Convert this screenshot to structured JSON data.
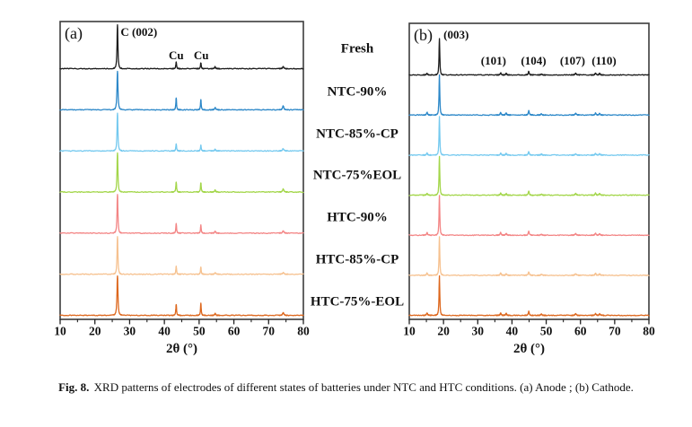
{
  "figure": {
    "caption_prefix": "Fig. 8.",
    "caption_text": " XRD patterns of electrodes of different states of batteries under NTC and HTC conditions. (a) Anode ; (b) Cathode."
  },
  "row_labels": [
    "Fresh",
    "NTC-90%",
    "NTC-85%-CP",
    "NTC-75%EOL",
    "HTC-90%",
    "HTC-85%-CP",
    "HTC-75%-EOL"
  ],
  "chart_data": [
    {
      "id": "anode",
      "type": "line",
      "panel_label": "(a)",
      "title": "",
      "xlabel": "2θ (°)",
      "ylabel": "",
      "xlim": [
        10,
        80
      ],
      "x_ticks": [
        10,
        20,
        30,
        40,
        50,
        60,
        70,
        80
      ],
      "grid": false,
      "legend_position": "labels-column-between-panels",
      "stacked_offset_traces": true,
      "peak_format": "[x_2theta_deg, relative_height, half_width_deg]",
      "annotations": [
        {
          "text": "C (002)",
          "x": 27.4,
          "row": 0,
          "dy": 37,
          "anchor": "start"
        },
        {
          "text": "Cu",
          "x": 43.4,
          "row": 0,
          "dy": 11,
          "anchor": "middle"
        },
        {
          "text": "Cu",
          "x": 50.6,
          "row": 0,
          "dy": 11,
          "anchor": "middle"
        }
      ],
      "series": [
        {
          "name": "Fresh",
          "color": "#1c1c1c",
          "peaks": [
            [
              26.5,
              1.1,
              0.18
            ],
            [
              43.4,
              0.17,
              0.15
            ],
            [
              50.5,
              0.15,
              0.15
            ],
            [
              54.6,
              0.05,
              0.2
            ],
            [
              74.2,
              0.05,
              0.25
            ]
          ]
        },
        {
          "name": "NTC-90%",
          "color": "#2b87c8",
          "peaks": [
            [
              26.5,
              0.97,
              0.2
            ],
            [
              43.4,
              0.3,
              0.15
            ],
            [
              50.5,
              0.26,
              0.15
            ],
            [
              54.6,
              0.06,
              0.2
            ],
            [
              74.2,
              0.1,
              0.25
            ]
          ]
        },
        {
          "name": "NTC-85%-CP",
          "color": "#74c9ef",
          "peaks": [
            [
              26.5,
              0.95,
              0.18
            ],
            [
              43.4,
              0.18,
              0.15
            ],
            [
              50.5,
              0.14,
              0.15
            ],
            [
              54.6,
              0.04,
              0.2
            ],
            [
              74.2,
              0.06,
              0.25
            ]
          ]
        },
        {
          "name": "NTC-75%EOL",
          "color": "#a3d64a",
          "peaks": [
            [
              26.5,
              1.0,
              0.18
            ],
            [
              43.4,
              0.26,
              0.15
            ],
            [
              50.5,
              0.24,
              0.15
            ],
            [
              54.6,
              0.05,
              0.2
            ],
            [
              74.2,
              0.08,
              0.25
            ]
          ]
        },
        {
          "name": "HTC-90%",
          "color": "#f38585",
          "peaks": [
            [
              26.5,
              0.98,
              0.18
            ],
            [
              43.4,
              0.24,
              0.15
            ],
            [
              50.5,
              0.2,
              0.15
            ],
            [
              54.6,
              0.05,
              0.2
            ],
            [
              74.2,
              0.06,
              0.25
            ]
          ]
        },
        {
          "name": "HTC-85%-CP",
          "color": "#f6c18f",
          "peaks": [
            [
              26.5,
              0.95,
              0.18
            ],
            [
              43.4,
              0.2,
              0.15
            ],
            [
              50.5,
              0.18,
              0.15
            ],
            [
              54.6,
              0.04,
              0.2
            ],
            [
              74.2,
              0.05,
              0.25
            ]
          ]
        },
        {
          "name": "HTC-75%-EOL",
          "color": "#dd671d",
          "peaks": [
            [
              26.5,
              1.0,
              0.2
            ],
            [
              43.4,
              0.28,
              0.15
            ],
            [
              50.5,
              0.3,
              0.15
            ],
            [
              54.6,
              0.05,
              0.2
            ],
            [
              74.2,
              0.07,
              0.25
            ]
          ]
        }
      ]
    },
    {
      "id": "cathode",
      "type": "line",
      "panel_label": "(b)",
      "title": "",
      "xlabel": "2θ (°)",
      "ylabel": "",
      "xlim": [
        10,
        80
      ],
      "x_ticks": [
        10,
        20,
        30,
        40,
        50,
        60,
        70,
        80
      ],
      "grid": false,
      "legend_position": "labels-column-between-panels",
      "stacked_offset_traces": true,
      "peak_format": "[x_2theta_deg, relative_height, half_width_deg]",
      "annotations": [
        {
          "text": "(003)",
          "x": 20.0,
          "row": 0,
          "dy": 41,
          "anchor": "start"
        },
        {
          "text": "(101)",
          "x": 34.6,
          "row": 0,
          "dy": 12,
          "anchor": "middle"
        },
        {
          "text": "(104)",
          "x": 46.3,
          "row": 0,
          "dy": 12,
          "anchor": "middle"
        },
        {
          "text": "(107)",
          "x": 57.7,
          "row": 0,
          "dy": 12,
          "anchor": "middle"
        },
        {
          "text": "(110)",
          "x": 66.9,
          "row": 0,
          "dy": 12,
          "anchor": "middle"
        }
      ],
      "series": [
        {
          "name": "Fresh",
          "color": "#1c1c1c",
          "peaks": [
            [
              15.2,
              0.04,
              0.2
            ],
            [
              18.8,
              0.93,
              0.16
            ],
            [
              36.7,
              0.05,
              0.2
            ],
            [
              38.3,
              0.04,
              0.2
            ],
            [
              44.9,
              0.09,
              0.2
            ],
            [
              48.6,
              0.03,
              0.2
            ],
            [
              58.6,
              0.04,
              0.25
            ],
            [
              64.4,
              0.05,
              0.2
            ],
            [
              65.6,
              0.04,
              0.2
            ]
          ]
        },
        {
          "name": "NTC-90%",
          "color": "#2b87c8",
          "peaks": [
            [
              15.2,
              0.07,
              0.2
            ],
            [
              18.8,
              1.02,
              0.16
            ],
            [
              36.7,
              0.06,
              0.2
            ],
            [
              38.3,
              0.05,
              0.2
            ],
            [
              44.9,
              0.11,
              0.2
            ],
            [
              48.6,
              0.03,
              0.2
            ],
            [
              58.6,
              0.04,
              0.25
            ],
            [
              64.4,
              0.05,
              0.2
            ],
            [
              65.6,
              0.04,
              0.2
            ]
          ]
        },
        {
          "name": "NTC-85%-CP",
          "color": "#74c9ef",
          "peaks": [
            [
              15.2,
              0.05,
              0.2
            ],
            [
              18.8,
              0.97,
              0.16
            ],
            [
              36.7,
              0.05,
              0.2
            ],
            [
              38.3,
              0.04,
              0.2
            ],
            [
              44.9,
              0.09,
              0.2
            ],
            [
              48.6,
              0.03,
              0.2
            ],
            [
              58.6,
              0.03,
              0.25
            ],
            [
              64.4,
              0.04,
              0.2
            ],
            [
              65.6,
              0.04,
              0.2
            ]
          ]
        },
        {
          "name": "NTC-75%EOL",
          "color": "#a3d64a",
          "peaks": [
            [
              15.2,
              0.04,
              0.2
            ],
            [
              18.8,
              0.98,
              0.16
            ],
            [
              36.7,
              0.05,
              0.2
            ],
            [
              38.3,
              0.04,
              0.2
            ],
            [
              44.9,
              0.1,
              0.2
            ],
            [
              48.6,
              0.03,
              0.2
            ],
            [
              58.6,
              0.04,
              0.25
            ],
            [
              64.4,
              0.05,
              0.2
            ],
            [
              65.6,
              0.04,
              0.2
            ]
          ]
        },
        {
          "name": "HTC-90%",
          "color": "#f38585",
          "peaks": [
            [
              15.2,
              0.07,
              0.2
            ],
            [
              18.8,
              1.0,
              0.16
            ],
            [
              36.7,
              0.07,
              0.2
            ],
            [
              38.3,
              0.05,
              0.2
            ],
            [
              44.9,
              0.1,
              0.2
            ],
            [
              48.6,
              0.03,
              0.2
            ],
            [
              58.6,
              0.04,
              0.25
            ],
            [
              64.4,
              0.05,
              0.2
            ],
            [
              65.6,
              0.04,
              0.2
            ]
          ]
        },
        {
          "name": "HTC-85%-CP",
          "color": "#f6c18f",
          "peaks": [
            [
              15.2,
              0.06,
              0.2
            ],
            [
              18.8,
              0.97,
              0.16
            ],
            [
              36.7,
              0.06,
              0.2
            ],
            [
              38.3,
              0.04,
              0.2
            ],
            [
              44.9,
              0.09,
              0.2
            ],
            [
              48.6,
              0.03,
              0.2
            ],
            [
              58.6,
              0.04,
              0.25
            ],
            [
              64.4,
              0.05,
              0.2
            ],
            [
              65.6,
              0.04,
              0.2
            ]
          ]
        },
        {
          "name": "HTC-75%-EOL",
          "color": "#dd671d",
          "peaks": [
            [
              15.2,
              0.06,
              0.2
            ],
            [
              18.8,
              1.0,
              0.16
            ],
            [
              36.7,
              0.06,
              0.2
            ],
            [
              38.3,
              0.05,
              0.2
            ],
            [
              44.9,
              0.1,
              0.2
            ],
            [
              48.6,
              0.03,
              0.2
            ],
            [
              58.6,
              0.04,
              0.25
            ],
            [
              64.4,
              0.05,
              0.2
            ],
            [
              65.6,
              0.04,
              0.2
            ]
          ]
        }
      ]
    }
  ]
}
